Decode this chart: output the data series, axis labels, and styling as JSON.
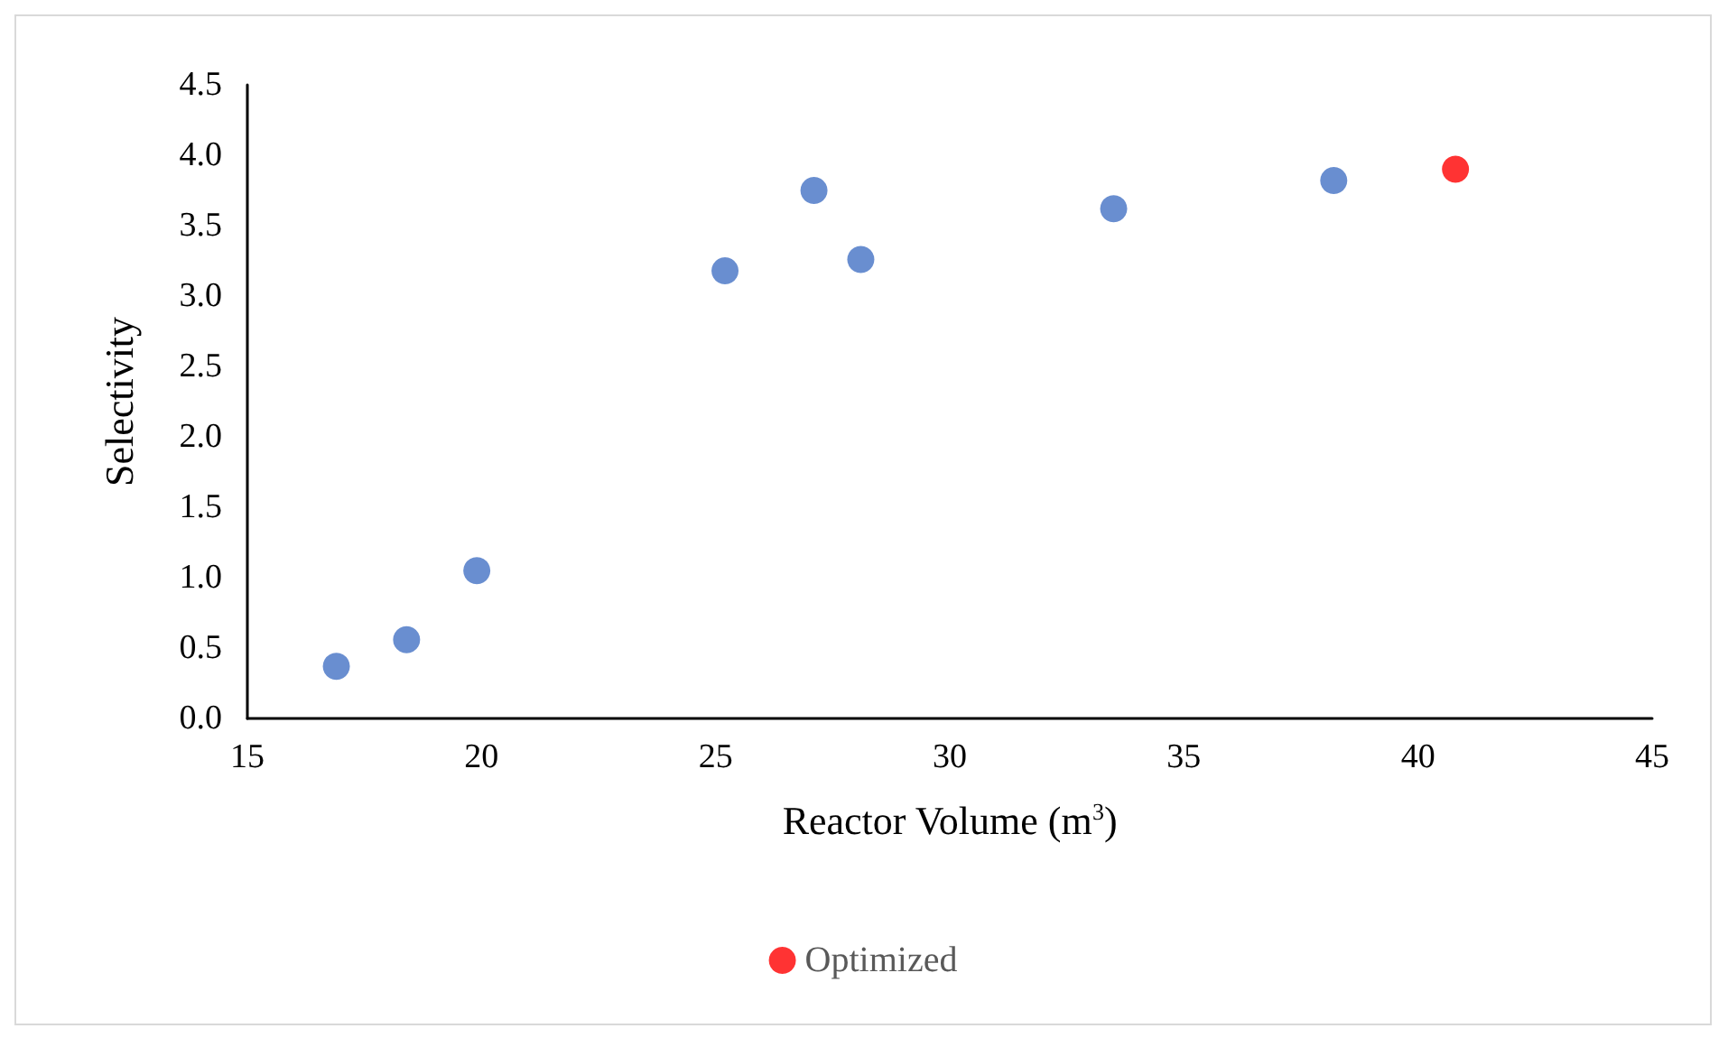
{
  "chart_data": {
    "type": "scatter",
    "xlabel": "Reactor Volume (m$^{3}$)",
    "ylabel": "Selectivity",
    "xlim": [
      15,
      45
    ],
    "xticks": [
      15,
      20,
      25,
      30,
      35,
      40,
      45
    ],
    "ylim": [
      0,
      4.5
    ],
    "yticks": [
      {
        "value": 0,
        "label": "0.0"
      },
      0.5,
      {
        "value": 1,
        "label": "1.0"
      },
      1.5,
      {
        "value": 2,
        "label": "2.0"
      },
      2.5,
      {
        "value": 3,
        "label": "3.0"
      },
      3.5,
      {
        "value": 4,
        "label": "4.0"
      },
      4.5
    ],
    "series": [
      {
        "color": "#4472c4",
        "x": [
          16.9,
          18.4,
          19.9,
          25.2,
          27.1,
          28.1,
          33.5,
          38.2
        ],
        "values": [
          0.37,
          0.56,
          1.05,
          3.18,
          3.75,
          3.26,
          3.62,
          3.82
        ]
      },
      {
        "name": "Optimized",
        "color": "#ff0000",
        "x": [
          40.8
        ],
        "values": [
          3.9
        ]
      }
    ],
    "marker": "circle",
    "grid": false,
    "legend": "bottom"
  }
}
